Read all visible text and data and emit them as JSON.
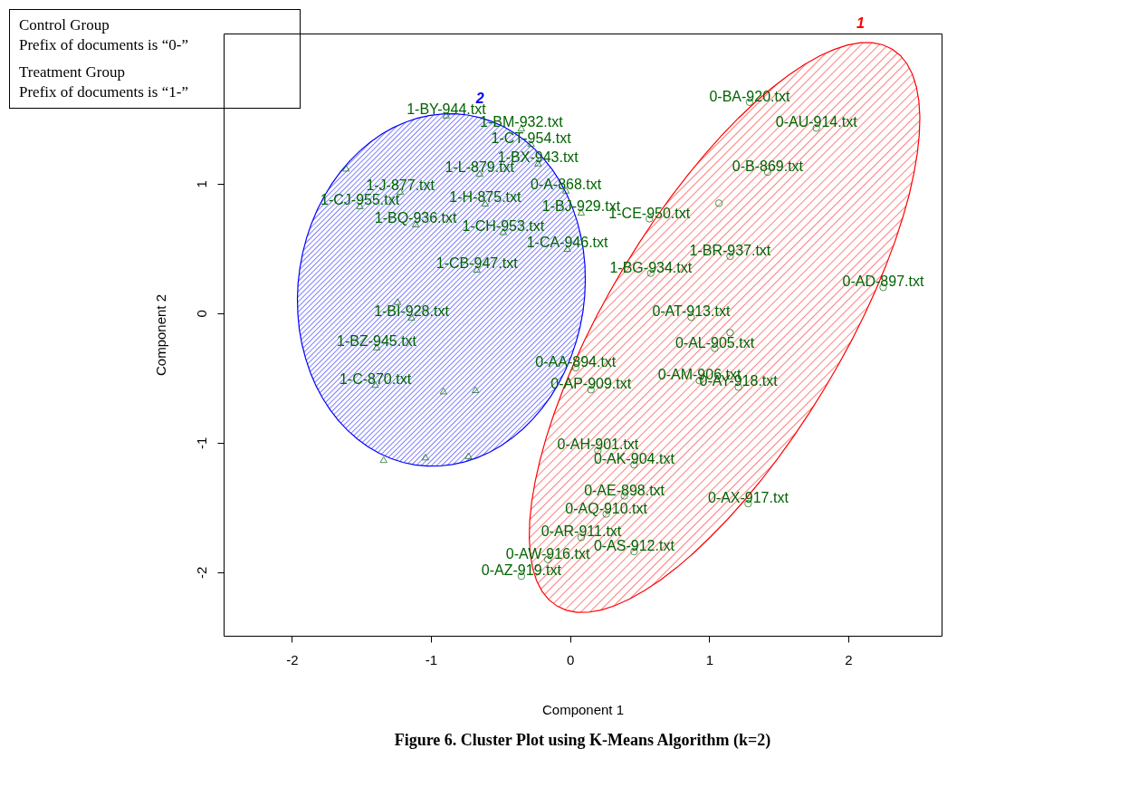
{
  "chart_data": {
    "type": "scatter",
    "title": "Figure 6.  Cluster Plot using K-Means Algorithm (k=2)",
    "xlabel": "Component 1",
    "ylabel": "Component 2",
    "xlim": [
      -2.49,
      2.67
    ],
    "ylim": [
      -2.49,
      2.16
    ],
    "xticks": [
      -2,
      -1,
      0,
      1,
      2
    ],
    "yticks": [
      -2,
      -1,
      0,
      1
    ],
    "series": [
      {
        "color": "#006400",
        "marker": "circle",
        "x": [
          1.29,
          1.77,
          1.42,
          1.07,
          0.57,
          1.15,
          0.58,
          2.25,
          0.87,
          1.15,
          1.04,
          0.04,
          0.15,
          1.21,
          0.93,
          0.2,
          0.46,
          0.39,
          1.28,
          0.26,
          0.08,
          0.46,
          -0.16,
          -0.35
        ],
        "values": [
          1.63,
          1.43,
          1.09,
          0.85,
          0.73,
          0.44,
          0.31,
          0.2,
          -0.03,
          -0.15,
          -0.27,
          -0.42,
          -0.59,
          -0.57,
          -0.52,
          -1.06,
          -1.17,
          -1.41,
          -1.47,
          -1.55,
          -1.73,
          -1.84,
          -1.9,
          -2.03
        ]
      },
      {
        "color": "#006400",
        "marker": "triangle",
        "x": [
          -0.89,
          -0.35,
          -0.28,
          -0.23,
          -0.65,
          -0.61,
          -1.22,
          -1.51,
          -1.11,
          -0.48,
          -0.02,
          0.08,
          -0.67,
          -1.14,
          -1.39,
          -1.4,
          -0.03,
          -1.61,
          -0.91,
          -0.68,
          -1.24,
          -1.34,
          -1.04,
          -0.73
        ],
        "values": [
          1.53,
          1.43,
          1.31,
          1.16,
          1.08,
          0.85,
          0.94,
          0.83,
          0.69,
          0.63,
          0.5,
          0.78,
          0.34,
          -0.03,
          -0.26,
          -0.55,
          0.95,
          1.12,
          -0.6,
          -0.59,
          0.09,
          -1.13,
          -1.11,
          -1.1
        ]
      }
    ],
    "annotations": [
      "Control Group",
      "Prefix of documents is “0-”",
      "Treatment Group",
      "Prefix of documents is “1-”",
      "1",
      "2",
      {
        "text": "0-BA-920.txt",
        "x": 1.29,
        "y": 1.63
      },
      {
        "text": "0-AU-914.txt",
        "x": 1.77,
        "y": 1.43
      },
      {
        "text": "0-B-869.txt",
        "x": 1.42,
        "y": 1.09
      },
      {
        "text": "1-CE-950.txt",
        "x": 0.57,
        "y": 0.73
      },
      {
        "text": "1-BR-937.txt",
        "x": 1.15,
        "y": 0.44
      },
      {
        "text": "1-BG-934.txt",
        "x": 0.58,
        "y": 0.31
      },
      {
        "text": "0-AD-897.txt",
        "x": 2.25,
        "y": 0.2
      },
      {
        "text": "0-AT-913.txt",
        "x": 0.87,
        "y": -0.03
      },
      {
        "text": "0-AL-905.txt",
        "x": 1.04,
        "y": -0.27
      },
      {
        "text": "0-AA-894.txt",
        "x": 0.04,
        "y": -0.42
      },
      {
        "text": "0-AP-909.txt",
        "x": 0.15,
        "y": -0.59
      },
      {
        "text": "0-AY-918.txt",
        "x": 1.21,
        "y": -0.57
      },
      {
        "text": "0-AM-906.txt",
        "x": 0.93,
        "y": -0.52
      },
      {
        "text": "0-AH-901.txt",
        "x": 0.2,
        "y": -1.06
      },
      {
        "text": "0-AK-904.txt",
        "x": 0.46,
        "y": -1.17
      },
      {
        "text": "0-AE-898.txt",
        "x": 0.39,
        "y": -1.41
      },
      {
        "text": "0-AX-917.txt",
        "x": 1.28,
        "y": -1.47
      },
      {
        "text": "0-AQ-910.txt",
        "x": 0.26,
        "y": -1.55
      },
      {
        "text": "0-AR-911.txt",
        "x": 0.08,
        "y": -1.73
      },
      {
        "text": "0-AS-912.txt",
        "x": 0.46,
        "y": -1.84
      },
      {
        "text": "0-AW-916.txt",
        "x": -0.16,
        "y": -1.9
      },
      {
        "text": "0-AZ-919.txt",
        "x": -0.35,
        "y": -2.03
      },
      {
        "text": "1-BY-944.txt",
        "x": -0.89,
        "y": 1.53
      },
      {
        "text": "1-BM-932.txt",
        "x": -0.35,
        "y": 1.43
      },
      {
        "text": "1-CT-954.txt",
        "x": -0.28,
        "y": 1.31
      },
      {
        "text": "1-BX-943.txt",
        "x": -0.23,
        "y": 1.16
      },
      {
        "text": "1-L-879.txt",
        "x": -0.65,
        "y": 1.08
      },
      {
        "text": "1-H-875.txt",
        "x": -0.61,
        "y": 0.85
      },
      {
        "text": "1-J-877.txt",
        "x": -1.22,
        "y": 0.94
      },
      {
        "text": "1-CJ-955.txt",
        "x": -1.51,
        "y": 0.83
      },
      {
        "text": "1-BQ-936.txt",
        "x": -1.11,
        "y": 0.69
      },
      {
        "text": "1-CH-953.txt",
        "x": -0.48,
        "y": 0.63
      },
      {
        "text": "1-CA-946.txt",
        "x": -0.02,
        "y": 0.5
      },
      {
        "text": "1-BJ-929.txt",
        "x": 0.08,
        "y": 0.78
      },
      {
        "text": "1-CB-947.txt",
        "x": -0.67,
        "y": 0.34
      },
      {
        "text": "1-BI-928.txt",
        "x": -1.14,
        "y": -0.03
      },
      {
        "text": "1-BZ-945.txt",
        "x": -1.39,
        "y": -0.26
      },
      {
        "text": "1-C-870.txt",
        "x": -1.4,
        "y": -0.55
      },
      {
        "text": "0-A-868.txt",
        "x": -0.03,
        "y": 0.95
      }
    ]
  }
}
